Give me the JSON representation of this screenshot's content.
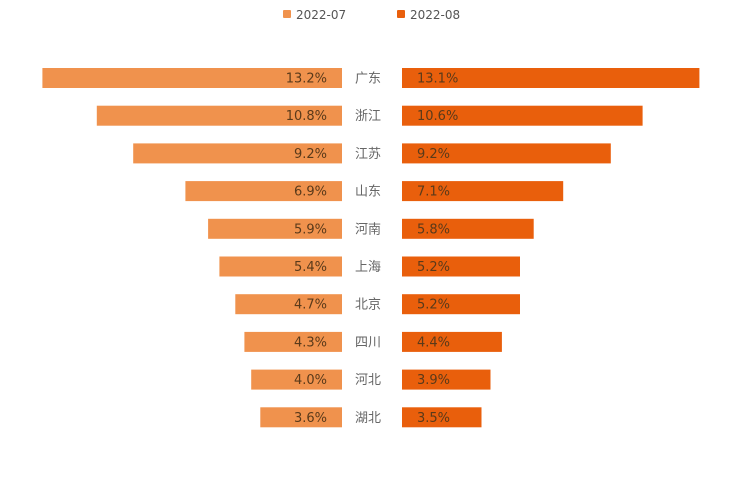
{
  "chart_data": {
    "type": "bar",
    "orientation": "butterfly",
    "categories": [
      "广东",
      "浙江",
      "江苏",
      "山东",
      "河南",
      "上海",
      "北京",
      "四川",
      "河北",
      "湖北"
    ],
    "series": [
      {
        "name": "2022-07",
        "color": "#F0924D",
        "values": [
          13.2,
          10.8,
          9.2,
          6.9,
          5.9,
          5.4,
          4.7,
          4.3,
          4.0,
          3.6
        ],
        "labels": [
          "13.2%",
          "10.8%",
          "9.2%",
          "6.9%",
          "5.9%",
          "5.4%",
          "4.7%",
          "4.3%",
          "4.0%",
          "3.6%"
        ]
      },
      {
        "name": "2022-08",
        "color": "#E95F0C",
        "values": [
          13.1,
          10.6,
          9.2,
          7.1,
          5.8,
          5.2,
          5.2,
          4.4,
          3.9,
          3.5
        ],
        "labels": [
          "13.1%",
          "10.6%",
          "9.2%",
          "7.1%",
          "5.8%",
          "5.2%",
          "5.2%",
          "4.4%",
          "3.9%",
          "3.5%"
        ]
      }
    ],
    "legend_position": "top-center",
    "grid": false
  }
}
